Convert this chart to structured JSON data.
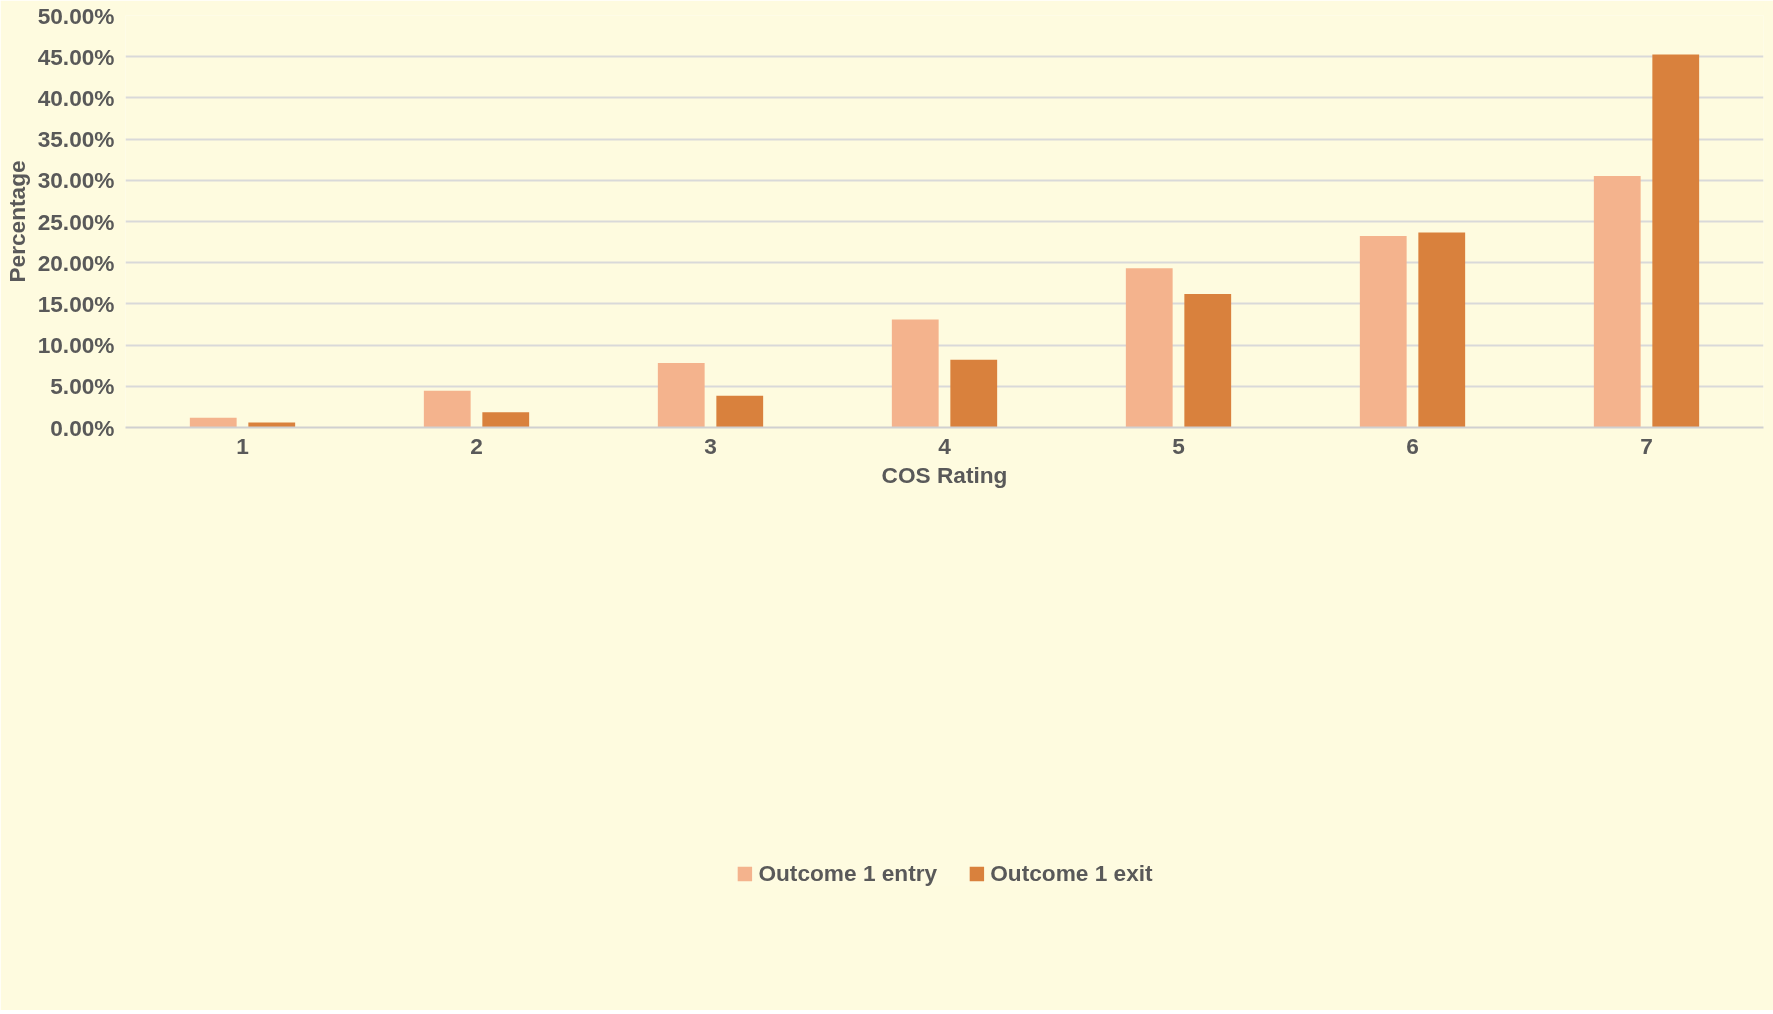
{
  "chart_data": {
    "type": "bar",
    "xlabel": "COS Rating",
    "ylabel": "Percentage",
    "categories": [
      "1",
      "2",
      "3",
      "4",
      "5",
      "6",
      "7"
    ],
    "series": [
      {
        "name": "Outcome 1 entry",
        "color": "#f4b38d",
        "values": [
          1.17,
          4.46,
          7.82,
          13.1,
          19.34,
          23.25,
          30.52
        ]
      },
      {
        "name": "Outcome 1 exit",
        "color": "#d9813d",
        "values": [
          0.62,
          1.85,
          3.84,
          8.23,
          16.19,
          23.66,
          45.27
        ]
      }
    ],
    "ylim": [
      0,
      50
    ],
    "yticks": [
      {
        "value": 0,
        "label": "0.00%"
      },
      {
        "value": 5,
        "label": "5.00%"
      },
      {
        "value": 10,
        "label": "10.00%"
      },
      {
        "value": 15,
        "label": "15.00%"
      },
      {
        "value": 20,
        "label": "20.00%"
      },
      {
        "value": 25,
        "label": "25.00%"
      },
      {
        "value": 30,
        "label": "30.00%"
      },
      {
        "value": 35,
        "label": "35.00%"
      },
      {
        "value": 40,
        "label": "40.00%"
      },
      {
        "value": 45,
        "label": "45.00%"
      },
      {
        "value": 50,
        "label": "50.00%"
      }
    ],
    "grid": "y",
    "legend": "bottom"
  }
}
